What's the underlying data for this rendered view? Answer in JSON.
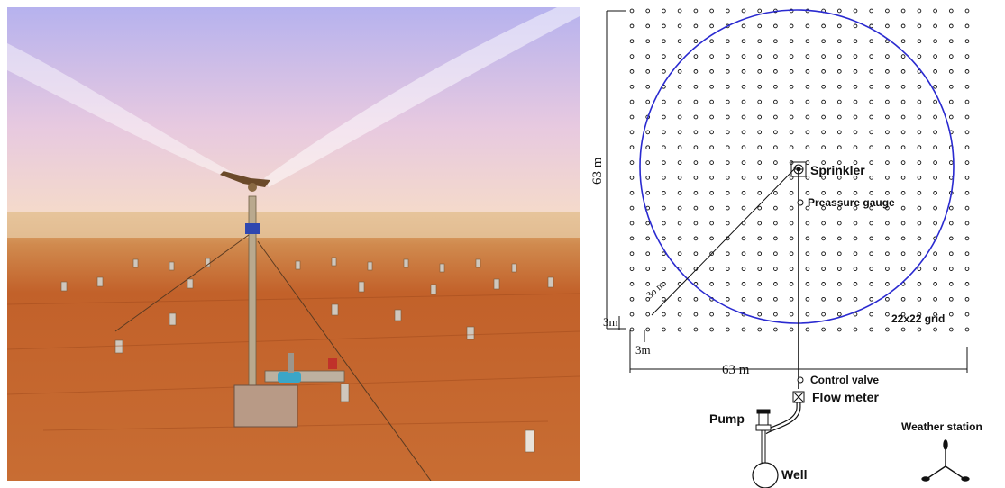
{
  "photo": {
    "description_icon": "sprinkler-field-photo-icon",
    "colors": {
      "sky_top": "#b9b6ee",
      "sky_bottom": "#f4d8c8",
      "soil": "#c2612a",
      "horizon": "#e9c9a0"
    }
  },
  "diagram": {
    "labels": {
      "sprinkler": "Sprinkler",
      "pressure_gauge": "Preassure gauge",
      "control_valve": "Control valve",
      "flow_meter": "Flow meter",
      "pump": "Pump",
      "well": "Well",
      "weather_station": "Weather station",
      "grid": "22x22 grid"
    },
    "dimensions": {
      "height": "63 m",
      "width": "63 m",
      "radius": "3o m",
      "spacing_x": "3m",
      "spacing_y": "3m"
    },
    "grid": {
      "rows": 22,
      "cols": 22
    },
    "colors": {
      "circle": "#2a2ad0",
      "ink": "#111111"
    }
  }
}
